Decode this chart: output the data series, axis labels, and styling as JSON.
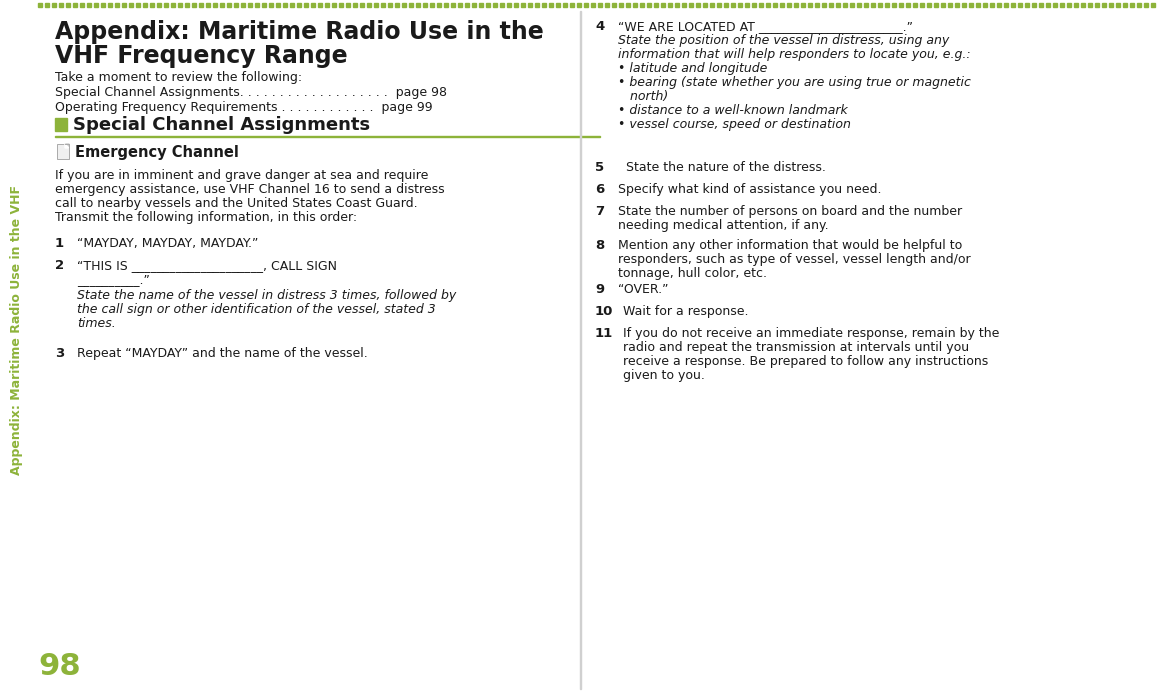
{
  "bg_color": "#ffffff",
  "green_color": "#8db33a",
  "text_color": "#1a1a1a",
  "sidebar_text": "Appendix: Maritime Radio Use in the VHF",
  "page_num": "98",
  "title_line1": "Appendix: Maritime Radio Use in the",
  "title_line2": "VHF Frequency Range",
  "intro": "Take a moment to review the following:",
  "toc1": "Special Channel Assignments. . . . . . . . . . . . . . . . . . .  page 98",
  "toc2": "Operating Frequency Requirements . . . . . . . . . . . .  page 99",
  "section_heading": "Special Channel Assignments",
  "subsection_heading": "Emergency Channel",
  "body_para_lines": [
    "If you are in imminent and grave danger at sea and require",
    "emergency assistance, use VHF Channel 16 to send a distress",
    "call to nearby vessels and the United States Coast Guard.",
    "Transmit the following information, in this order:"
  ],
  "item1_main": "“MAYDAY, MAYDAY, MAYDAY.”",
  "item2_main_line1": "“THIS IS _____________________, CALL SIGN",
  "item2_main_line2": "__________.”",
  "item2_italic": "State the name of the vessel in distress 3 times, followed by\nthe call sign or other identification of the vessel, stated 3\ntimes.",
  "item3_main": "Repeat “MAYDAY” and the name of the vessel.",
  "item4_main": "“WE ARE LOCATED AT _______________________.”",
  "item4_italic_line1": "State the position of the vessel in distress, using any",
  "item4_italic_line2": "information that will help responders to locate you, e.g.:",
  "item4_bullets": [
    "• latitude and longitude",
    "• bearing (state whether you are using true or magnetic",
    "   north)",
    "• distance to a well-known landmark",
    "• vessel course, speed or destination"
  ],
  "item5_main": "  State the nature of the distress.",
  "item6_main": "Specify what kind of assistance you need.",
  "item7_line1": "State the number of persons on board and the number",
  "item7_line2": "needing medical attention, if any.",
  "item8_line1": "Mention any other information that would be helpful to",
  "item8_line2": "responders, such as type of vessel, vessel length and/or",
  "item8_line3": "tonnage, hull color, etc.",
  "item9_main": "“OVER.”",
  "item10_main": "Wait for a response.",
  "item11_line1": "If you do not receive an immediate response, remain by the",
  "item11_line2": "radio and repeat the transmission at intervals until you",
  "item11_line3": "receive a response. Be prepared to follow any instructions",
  "item11_line4": "given to you."
}
